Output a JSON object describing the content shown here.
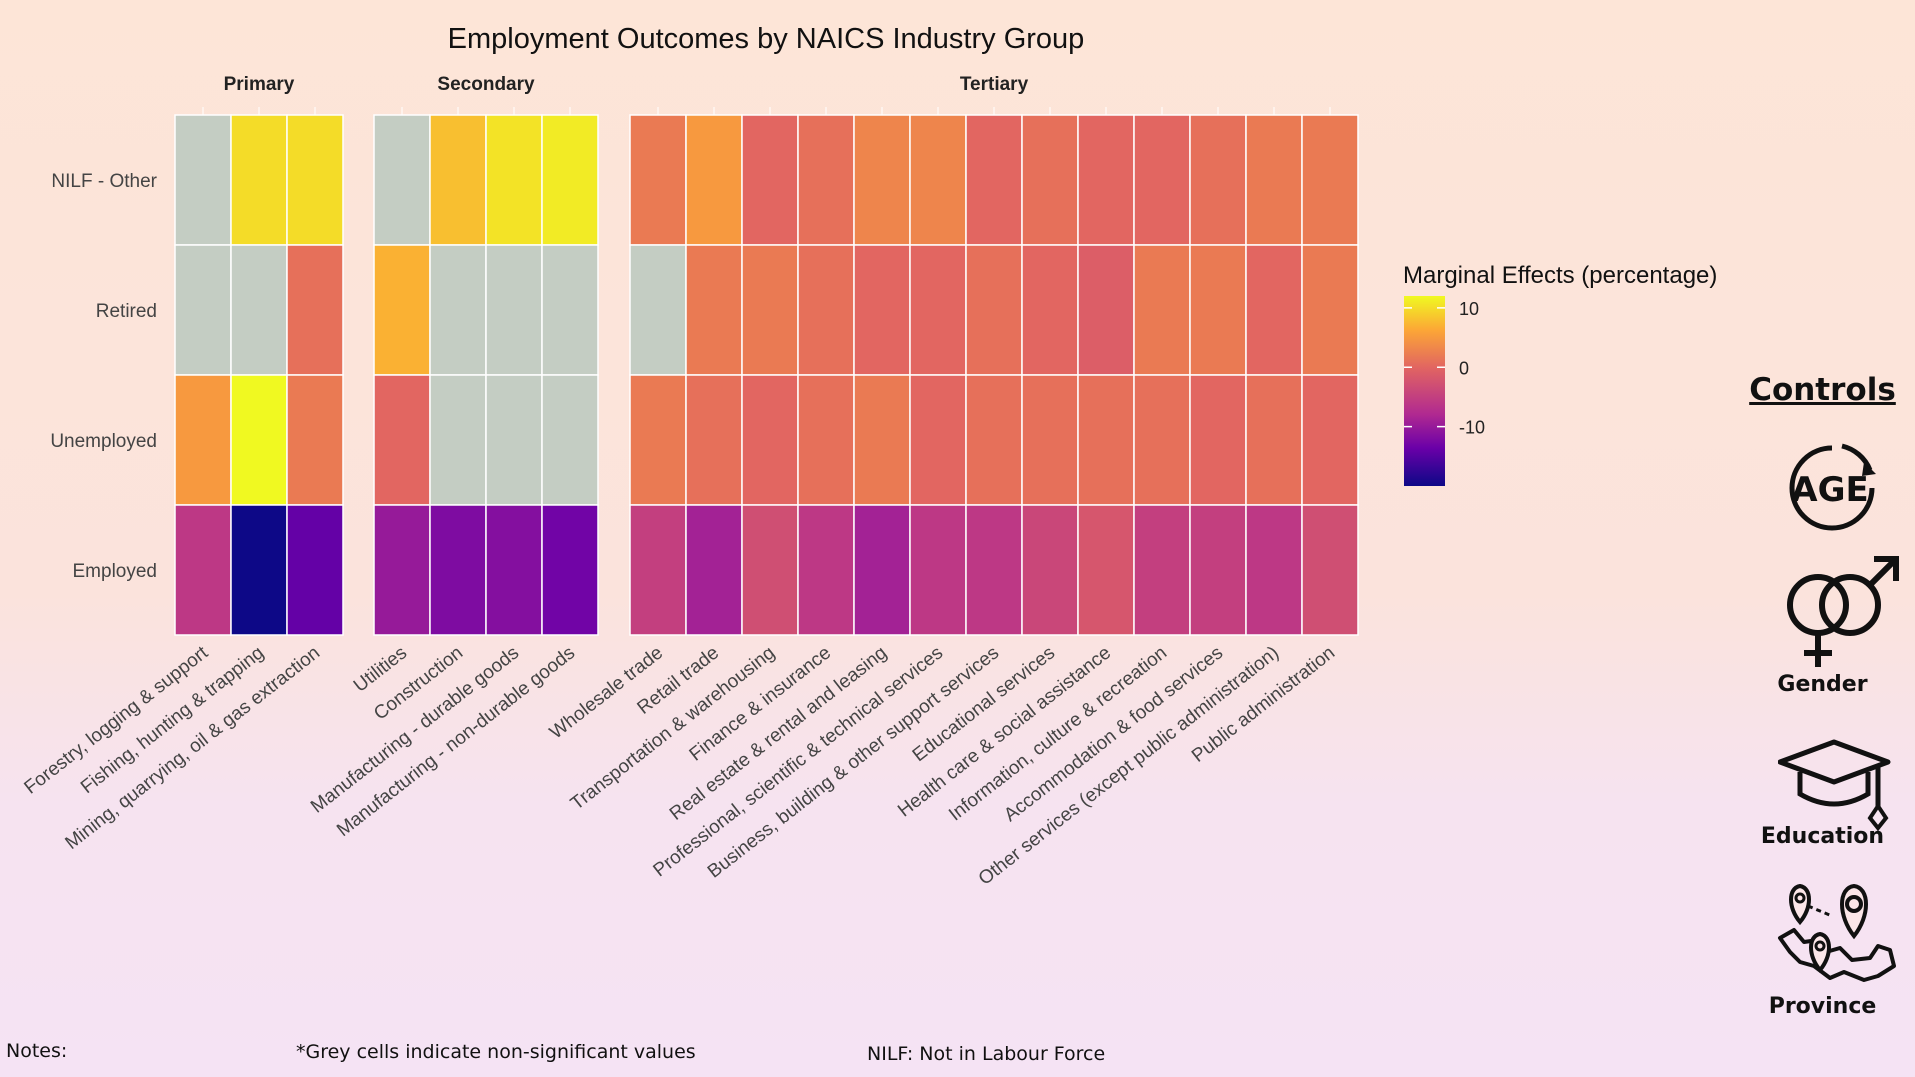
{
  "chart_data": {
    "type": "heatmap",
    "title": "Employment Outcomes by NAICS Industry Group",
    "legend": {
      "title": "Marginal Effects (percentage)",
      "ticks": [
        10,
        0,
        -10
      ],
      "range": [
        -20,
        12
      ],
      "placement": "right"
    },
    "rows": [
      "NILF - Other",
      "Retired",
      "Unemployed",
      "Employed"
    ],
    "groups": [
      {
        "name": "Primary",
        "industries": [
          "Forestry, logging & support",
          "Fishing, hunting & trapping",
          "Mining, quarrying, oil & gas extraction"
        ],
        "values": [
          [
            null,
            10,
            10
          ],
          [
            null,
            null,
            1
          ],
          [
            5,
            12,
            2
          ],
          [
            -6,
            -20,
            -14
          ]
        ]
      },
      {
        "name": "Secondary",
        "industries": [
          "Utilities",
          "Construction",
          "Manufacturing - durable goods",
          "Manufacturing - non-durable goods"
        ],
        "values": [
          [
            null,
            8,
            10.5,
            11
          ],
          [
            7,
            null,
            null,
            null
          ],
          [
            0,
            null,
            null,
            null
          ],
          [
            -10,
            -12,
            -11.5,
            -13
          ]
        ]
      },
      {
        "name": "Tertiary",
        "industries": [
          "Wholesale trade",
          "Retail trade",
          "Transportation & warehousing",
          "Finance & insurance",
          "Real estate & rental and leasing",
          "Professional, scientific & technical services",
          "Business, building & other support services",
          "Educational services",
          "Health care & social assistance",
          "Information, culture & recreation",
          "Accommodation & food services",
          "Other services (except public administration)",
          "Public administration"
        ],
        "values": [
          [
            2,
            5,
            0,
            1,
            3,
            3,
            0,
            1,
            0,
            0,
            1,
            2,
            2
          ],
          [
            null,
            2,
            2,
            1,
            0,
            0,
            1,
            0,
            -1,
            2,
            2,
            0,
            2
          ],
          [
            2,
            1,
            0,
            1,
            2,
            0,
            1,
            1,
            1,
            1,
            0,
            1,
            0
          ],
          [
            -5,
            -9,
            -3,
            -6,
            -9,
            -6,
            -6,
            -4,
            -2,
            -5,
            -5,
            -6,
            -3
          ]
        ]
      }
    ]
  },
  "controls": {
    "title": "Controls",
    "items": [
      {
        "label": "",
        "icon": "age-icon",
        "text": "AGE"
      },
      {
        "label": "Gender",
        "icon": "gender-icon"
      },
      {
        "label": "Education",
        "icon": "graduation-cap-icon"
      },
      {
        "label": "Province",
        "icon": "map-pins-icon"
      }
    ]
  },
  "notes": {
    "label": "Notes:",
    "grey": "*Grey cells indicate non-significant values",
    "nilf": "NILF: Not in Labour Force"
  },
  "colors": {
    "non_significant": "#c4cdc3",
    "cell_border": "#ffffff"
  }
}
